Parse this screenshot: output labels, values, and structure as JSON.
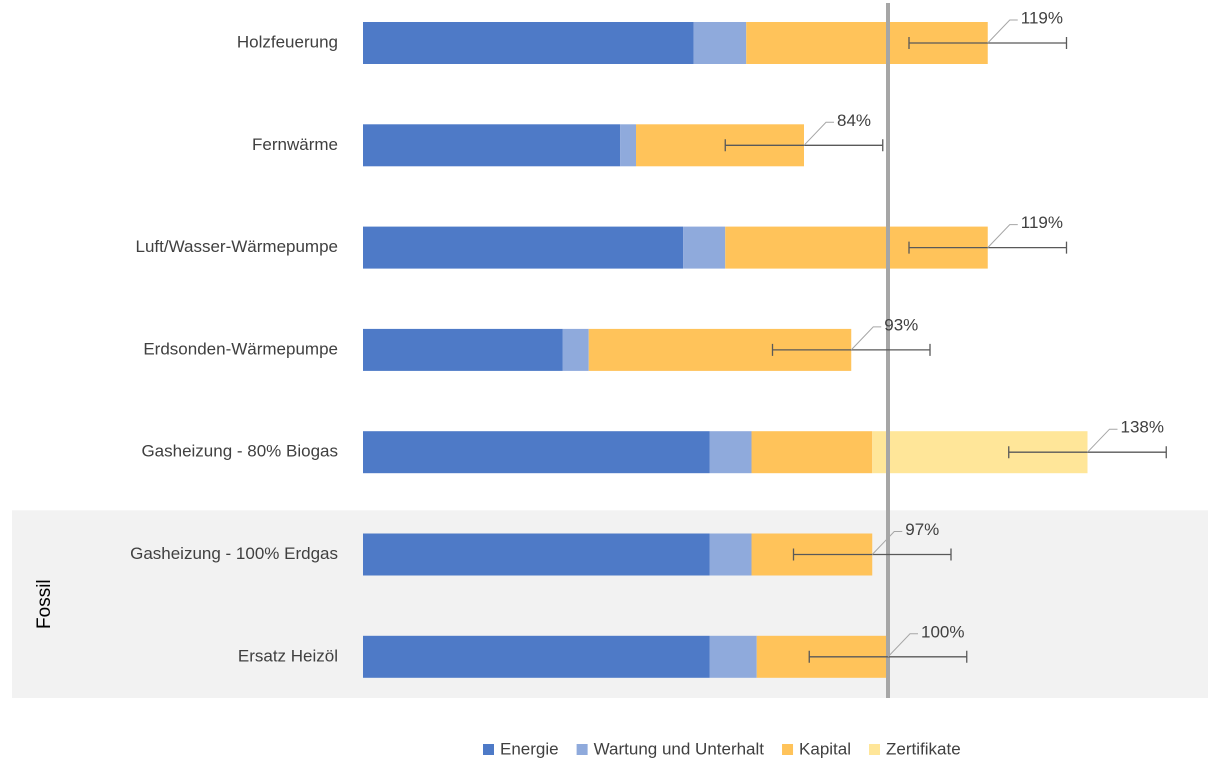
{
  "chart_data": {
    "type": "stacked-barh",
    "categories": [
      "Holzfeuerung",
      "Fernwärme",
      "Luft/Wasser-Wärmepumpe",
      "Erdsonden-Wärmepumpe",
      "Gasheizung - 80% Biogas",
      "Gasheizung - 100% Erdgas",
      "Ersatz Heizöl"
    ],
    "series": [
      {
        "name": "Energie",
        "color": "#4e7ac7",
        "values": [
          63,
          49,
          61,
          38,
          66,
          66,
          66
        ]
      },
      {
        "name": "Wartung und Unterhalt",
        "color": "#8faadc",
        "values": [
          10,
          3,
          8,
          5,
          8,
          8,
          9
        ]
      },
      {
        "name": "Kapital",
        "color": "#ffc35a",
        "values": [
          46,
          32,
          50,
          50,
          23,
          23,
          25
        ]
      },
      {
        "name": "Zertifikate",
        "color": "#ffe699",
        "values": [
          0,
          0,
          0,
          0,
          41,
          0,
          0
        ]
      }
    ],
    "totals": {
      "values": [
        119,
        84,
        119,
        93,
        138,
        97,
        100
      ],
      "value_labels": [
        "119%",
        "84%",
        "119%",
        "93%",
        "138%",
        "97%",
        "100%"
      ],
      "errors": [
        15,
        15,
        15,
        15,
        15,
        15,
        15
      ]
    },
    "reference_line": 100,
    "group": {
      "label": "Fossil",
      "members": [
        5,
        6
      ]
    },
    "xlim": [
      0,
      160
    ],
    "legend": "bottom"
  }
}
